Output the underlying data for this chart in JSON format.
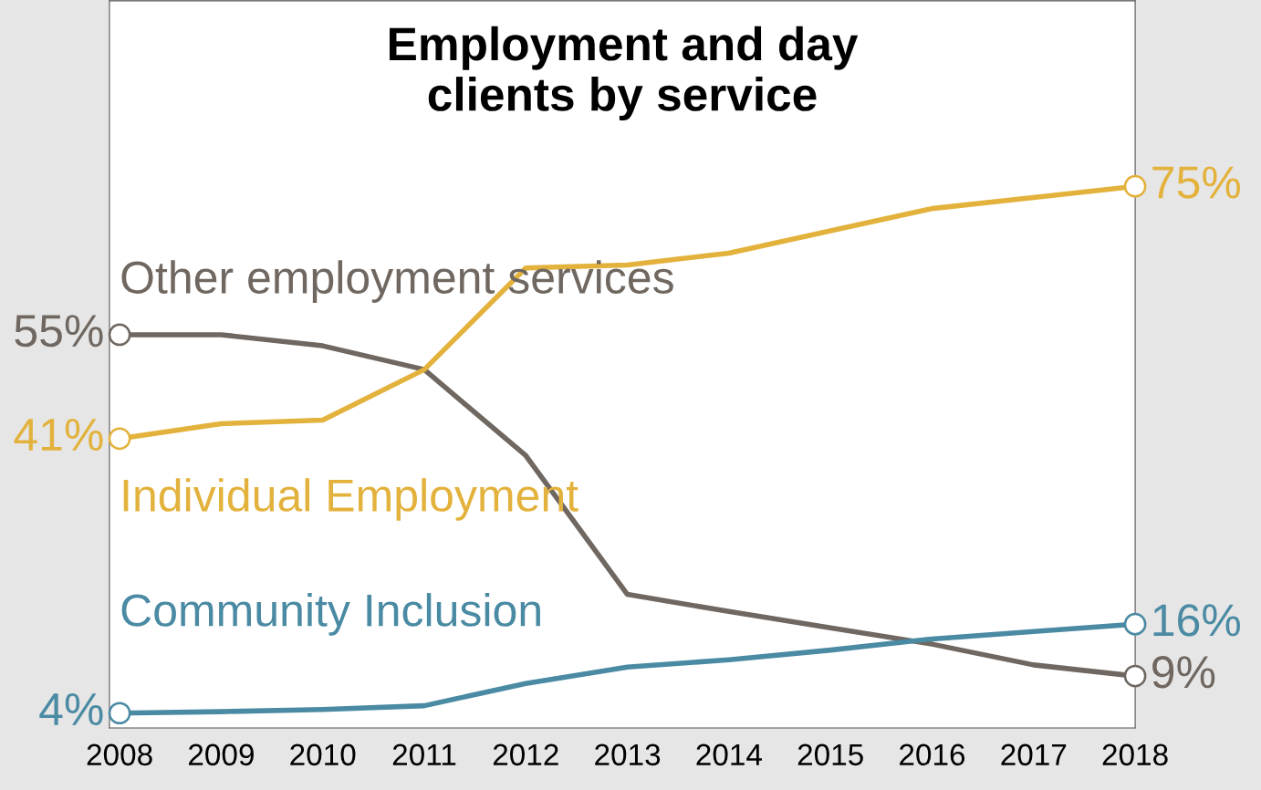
{
  "chart_data": {
    "type": "line",
    "title": "Employment and day\nclients by service",
    "x": [
      2008,
      2009,
      2010,
      2011,
      2012,
      2013,
      2014,
      2015,
      2016,
      2017,
      2018
    ],
    "xlim": [
      2007.9,
      2018
    ],
    "xticks": [
      2008,
      2009,
      2010,
      2011,
      2012,
      2013,
      2014,
      2015,
      2016,
      2017,
      2018
    ],
    "ylim": [
      2,
      100
    ],
    "tick_labels": "x",
    "grid": false,
    "legend": false,
    "line_style": "solid",
    "series": [
      {
        "name": "Other employment services",
        "color": "#6f6760",
        "values": [
          55,
          55,
          53.5,
          50.3,
          38.7,
          20,
          17.7,
          15.5,
          13.3,
          10.5,
          9
        ],
        "value_labels": [
          "55%",
          null,
          null,
          null,
          null,
          null,
          null,
          null,
          null,
          null,
          "9%"
        ]
      },
      {
        "name": "Individual Employment",
        "color": "#e3b23c",
        "values": [
          41,
          43,
          43.5,
          50.3,
          64,
          64.4,
          66,
          69,
          72,
          73.5,
          75
        ],
        "value_labels": [
          "41%",
          null,
          null,
          null,
          null,
          null,
          null,
          null,
          null,
          null,
          "75%"
        ]
      },
      {
        "name": "Community Inclusion",
        "color": "#4a8aa3",
        "values": [
          4,
          4.2,
          4.5,
          5,
          8,
          10.2,
          11.2,
          12.5,
          14,
          15,
          16
        ],
        "value_labels": [
          "4%",
          null,
          null,
          null,
          null,
          null,
          null,
          null,
          null,
          null,
          "16%"
        ]
      }
    ]
  }
}
